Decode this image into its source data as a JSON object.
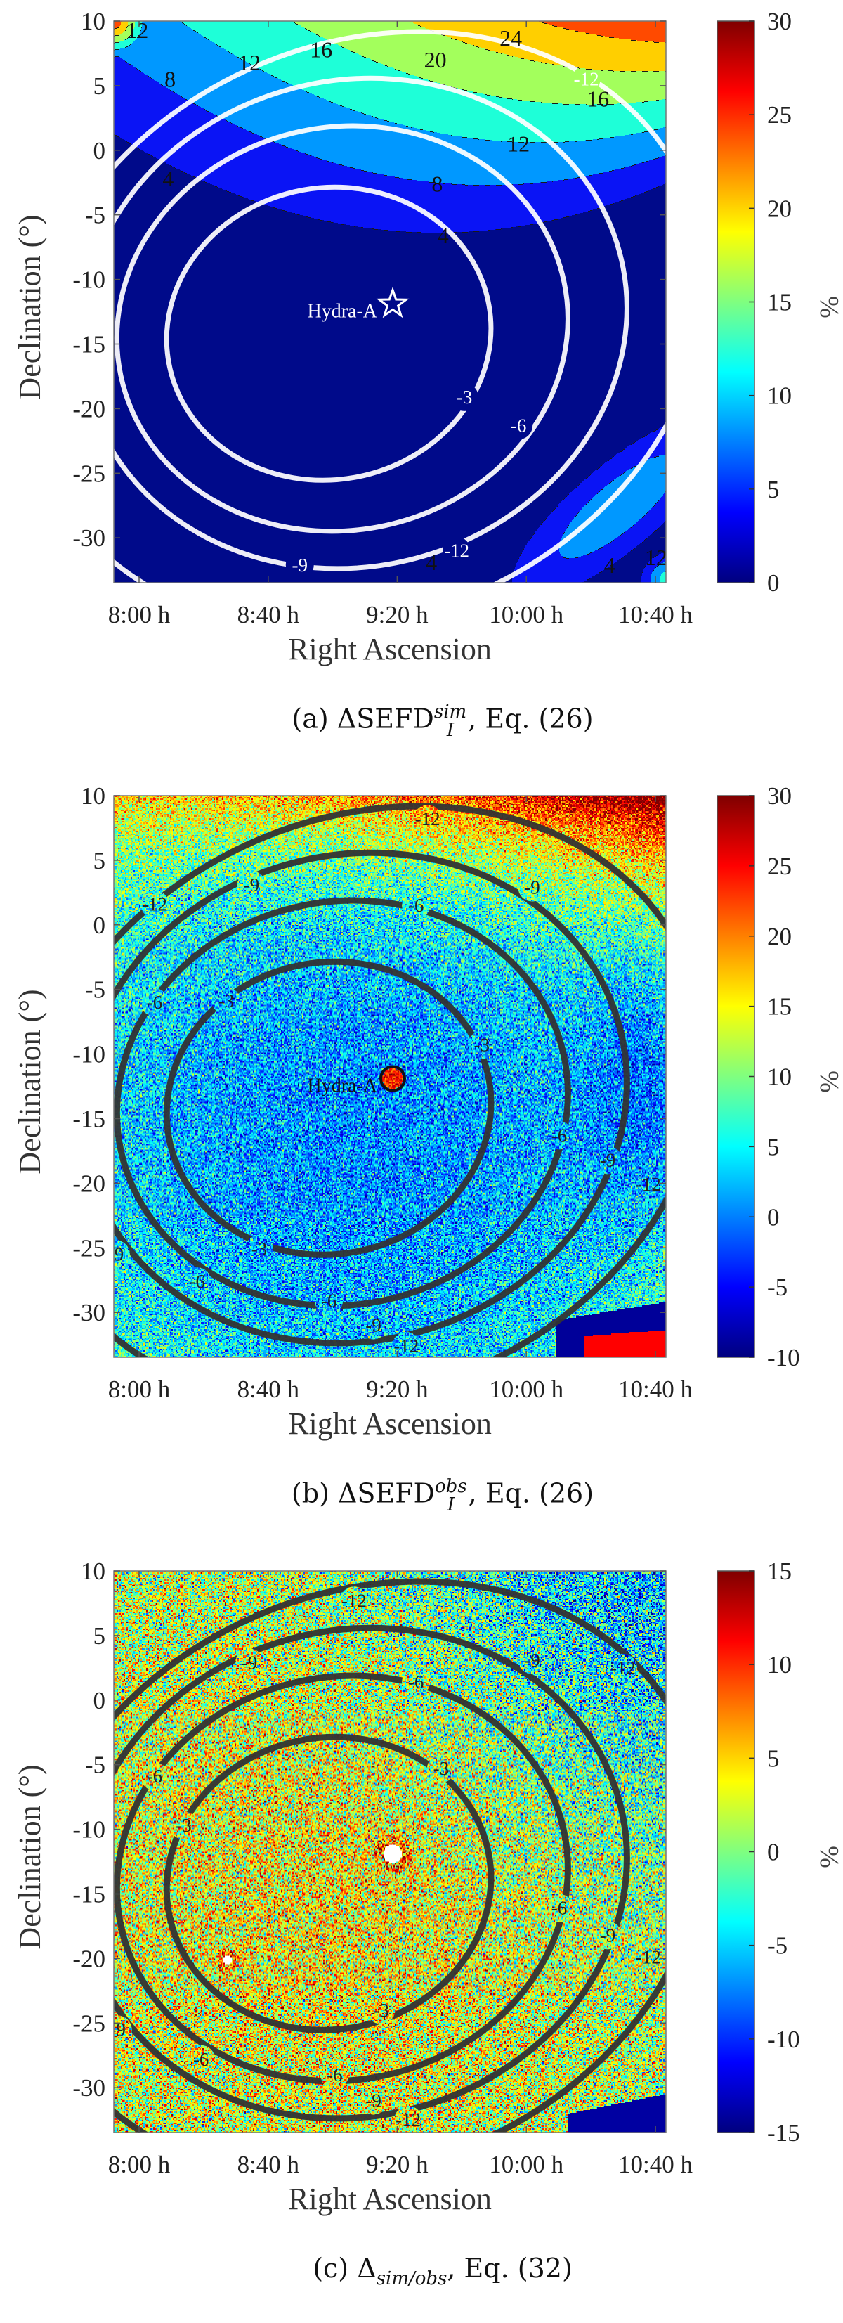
{
  "chart_data": [
    {
      "type": "heatmap",
      "subtype": "filled-contour",
      "caption": {
        "prefix": "(a) ΔSEFD",
        "sup": "sim",
        "sub": "I",
        "suffix": ", Eq. (26)"
      },
      "xlabel": "Right Ascension",
      "ylabel": "Declination (°)",
      "x_ticks": [
        {
          "label": "8:00 h",
          "ra_h": 8
        },
        {
          "label": "8:40 h",
          "ra_h": 8.667
        },
        {
          "label": "9:20 h",
          "ra_h": 9.333
        },
        {
          "label": "10:00 h",
          "ra_h": 10
        },
        {
          "label": "10:40 h",
          "ra_h": 10.667
        }
      ],
      "y_ticks": [
        "10",
        "5",
        "0",
        "-5",
        "-10",
        "-15",
        "-20",
        "-25",
        "-30"
      ],
      "xlim_h": [
        7.87,
        10.72
      ],
      "ylim_deg": [
        -33.5,
        10
      ],
      "colorbar": {
        "label": "%",
        "colormap": "jet",
        "clim": [
          0,
          30
        ],
        "ticks": [
          "30",
          "25",
          "20",
          "15",
          "10",
          "5",
          "0"
        ]
      },
      "filled_levels": [
        0,
        4,
        8,
        12,
        16,
        20,
        24,
        28
      ],
      "band_colors": [
        "#000a8a",
        "#0a14f5",
        "#0098ff",
        "#1effd8",
        "#a3ff5c",
        "#ffcf00",
        "#ff4a00",
        "#b00000"
      ],
      "filled_labels": [
        {
          "text": "12",
          "ra": 7.99,
          "dec": 9.3
        },
        {
          "text": "12",
          "ra": 8.57,
          "dec": 6.8
        },
        {
          "text": "16",
          "ra": 8.94,
          "dec": 7.8
        },
        {
          "text": "20",
          "ra": 9.53,
          "dec": 7.0
        },
        {
          "text": "24",
          "ra": 9.92,
          "dec": 8.7
        },
        {
          "text": "8",
          "ra": 8.16,
          "dec": 5.5
        },
        {
          "text": "16",
          "ra": 10.37,
          "dec": 4.0
        },
        {
          "text": "12",
          "ra": 9.96,
          "dec": 0.5
        },
        {
          "text": "8",
          "ra": 9.54,
          "dec": -2.6
        },
        {
          "text": "4",
          "ra": 9.57,
          "dec": -6.6
        },
        {
          "text": "4",
          "ra": 8.15,
          "dec": -2.2
        },
        {
          "text": "4",
          "ra": 9.51,
          "dec": -31.9
        },
        {
          "text": "4",
          "ra": 10.43,
          "dec": -32.1
        },
        {
          "text": "12",
          "ra": 10.67,
          "dec": -31.5
        }
      ],
      "contour_color": "#ffffff",
      "contours": [
        {
          "level": -3,
          "center_ra": 8.98,
          "center_dec": -14.2,
          "semi_ra_h": 0.84,
          "semi_dec": 11.3,
          "tilt_deg": -10
        },
        {
          "level": -6,
          "center_ra": 9.05,
          "center_dec": -13.8,
          "semi_ra_h": 1.17,
          "semi_dec": 15.6,
          "tilt_deg": -12
        },
        {
          "level": -9,
          "center_ra": 9.11,
          "center_dec": -13.4,
          "semi_ra_h": 1.42,
          "semi_dec": 18.8,
          "tilt_deg": -15
        },
        {
          "level": -12,
          "center_ra": 9.17,
          "center_dec": -13.9,
          "semi_ra_h": 1.81,
          "semi_dec": 22.1,
          "tilt_deg": -25
        }
      ],
      "contour_labels": [
        {
          "text": "-3",
          "ra": 9.68,
          "dec": -19.1
        },
        {
          "text": "-6",
          "ra": 9.96,
          "dec": -21.3
        },
        {
          "text": "-9",
          "ra": 8.83,
          "dec": -32.1
        },
        {
          "text": "-12",
          "ra": 9.64,
          "dec": -31.0
        },
        {
          "text": "-12",
          "ra": 10.31,
          "dec": 5.5
        }
      ],
      "source": {
        "label": "Hydra-A",
        "marker": "star",
        "ra": 9.31,
        "dec": -11.9
      }
    },
    {
      "type": "heatmap",
      "caption": {
        "prefix": "(b) ΔSEFD",
        "sup": "obs",
        "sub": "I",
        "suffix": ", Eq. (26)"
      },
      "xlabel": "Right Ascension",
      "ylabel": "Declination (°)",
      "x_ticks": [
        {
          "label": "8:00 h",
          "ra_h": 8
        },
        {
          "label": "8:40 h",
          "ra_h": 8.667
        },
        {
          "label": "9:20 h",
          "ra_h": 9.333
        },
        {
          "label": "10:00 h",
          "ra_h": 10
        },
        {
          "label": "10:40 h",
          "ra_h": 10.667
        }
      ],
      "y_ticks": [
        "10",
        "5",
        "0",
        "-5",
        "-10",
        "-15",
        "-20",
        "-25",
        "-30"
      ],
      "xlim_h": [
        7.87,
        10.72
      ],
      "ylim_deg": [
        -33.5,
        10
      ],
      "colorbar": {
        "label": "%",
        "colormap": "jet",
        "clim": [
          -10,
          30
        ],
        "ticks": [
          "30",
          "25",
          "20",
          "15",
          "10",
          "5",
          "0",
          "-5",
          "-10"
        ]
      },
      "contour_color": "#333333",
      "contours": [
        {
          "level": -3,
          "center_ra": 8.98,
          "center_dec": -14.2,
          "semi_ra_h": 0.84,
          "semi_dec": 11.3,
          "tilt_deg": -10
        },
        {
          "level": -6,
          "center_ra": 9.05,
          "center_dec": -13.8,
          "semi_ra_h": 1.17,
          "semi_dec": 15.6,
          "tilt_deg": -12
        },
        {
          "level": -9,
          "center_ra": 9.11,
          "center_dec": -13.4,
          "semi_ra_h": 1.42,
          "semi_dec": 18.8,
          "tilt_deg": -15
        },
        {
          "level": -12,
          "center_ra": 9.17,
          "center_dec": -13.9,
          "semi_ra_h": 1.81,
          "semi_dec": 22.1,
          "tilt_deg": -25
        }
      ],
      "contour_labels": [
        {
          "text": "-12",
          "ra": 9.49,
          "dec": 8.2
        },
        {
          "text": "-9",
          "ra": 8.58,
          "dec": 3.1
        },
        {
          "text": "-9",
          "ra": 10.03,
          "dec": 2.9
        },
        {
          "text": "-12",
          "ra": 8.08,
          "dec": 1.6
        },
        {
          "text": "-6",
          "ra": 9.43,
          "dec": 1.5
        },
        {
          "text": "-6",
          "ra": 8.08,
          "dec": -6.0
        },
        {
          "text": "-3",
          "ra": 8.45,
          "dec": -5.9
        },
        {
          "text": "-3",
          "ra": 9.77,
          "dec": -9.3
        },
        {
          "text": "-6",
          "ra": 10.17,
          "dec": -16.3
        },
        {
          "text": "-9",
          "ra": 10.42,
          "dec": -18.2
        },
        {
          "text": "-12",
          "ra": 10.63,
          "dec": -20.1
        },
        {
          "text": "-9",
          "ra": 7.88,
          "dec": -25.5
        },
        {
          "text": "-3",
          "ra": 8.62,
          "dec": -25.1
        },
        {
          "text": "-6",
          "ra": 8.3,
          "dec": -27.6
        },
        {
          "text": "-6",
          "ra": 8.98,
          "dec": -29.1
        },
        {
          "text": "-9",
          "ra": 9.21,
          "dec": -31.0
        },
        {
          "text": "-12",
          "ra": 9.38,
          "dec": -32.6
        }
      ],
      "source": {
        "label": "Hydra-A",
        "marker": "circle",
        "ra": 9.31,
        "dec": -11.9
      }
    },
    {
      "type": "heatmap",
      "caption": {
        "prefix": "(c) Δ",
        "sub": "sim/obs",
        "suffix": ", Eq. (32)"
      },
      "xlabel": "Right Ascension",
      "ylabel": "Declination (°)",
      "x_ticks": [
        {
          "label": "8:00 h",
          "ra_h": 8
        },
        {
          "label": "8:40 h",
          "ra_h": 8.667
        },
        {
          "label": "9:20 h",
          "ra_h": 9.333
        },
        {
          "label": "10:00 h",
          "ra_h": 10
        },
        {
          "label": "10:40 h",
          "ra_h": 10.667
        }
      ],
      "y_ticks": [
        "10",
        "5",
        "0",
        "-5",
        "-10",
        "-15",
        "-20",
        "-25",
        "-30"
      ],
      "xlim_h": [
        7.87,
        10.72
      ],
      "ylim_deg": [
        -33.5,
        10
      ],
      "colorbar": {
        "label": "%",
        "colormap": "jet",
        "clim": [
          -15,
          15
        ],
        "ticks": [
          "15",
          "10",
          "5",
          "0",
          "-5",
          "-10",
          "-15"
        ]
      },
      "contour_color": "#333333",
      "contours": [
        {
          "level": -3,
          "center_ra": 8.98,
          "center_dec": -14.2,
          "semi_ra_h": 0.84,
          "semi_dec": 11.3,
          "tilt_deg": -10
        },
        {
          "level": -6,
          "center_ra": 9.05,
          "center_dec": -13.8,
          "semi_ra_h": 1.17,
          "semi_dec": 15.6,
          "tilt_deg": -12
        },
        {
          "level": -9,
          "center_ra": 9.11,
          "center_dec": -13.4,
          "semi_ra_h": 1.42,
          "semi_dec": 18.8,
          "tilt_deg": -15
        },
        {
          "level": -12,
          "center_ra": 9.17,
          "center_dec": -13.9,
          "semi_ra_h": 1.81,
          "semi_dec": 22.1,
          "tilt_deg": -25
        }
      ],
      "contour_labels": [
        {
          "text": "-12",
          "ra": 9.11,
          "dec": 7.7
        },
        {
          "text": "-12",
          "ra": 10.5,
          "dec": 2.5
        },
        {
          "text": "-9",
          "ra": 10.03,
          "dec": 3.1
        },
        {
          "text": "-9",
          "ra": 8.57,
          "dec": 2.9
        },
        {
          "text": "-6",
          "ra": 9.43,
          "dec": 1.4
        },
        {
          "text": "-3",
          "ra": 9.56,
          "dec": -5.3
        },
        {
          "text": "-6",
          "ra": 8.08,
          "dec": -5.9
        },
        {
          "text": "-3",
          "ra": 8.23,
          "dec": -9.7
        },
        {
          "text": "-6",
          "ra": 10.17,
          "dec": -16.1
        },
        {
          "text": "-9",
          "ra": 10.42,
          "dec": -18.2
        },
        {
          "text": "-12",
          "ra": 10.63,
          "dec": -19.9
        },
        {
          "text": "-3",
          "ra": 9.25,
          "dec": -24.0
        },
        {
          "text": "-9",
          "ra": 7.89,
          "dec": -25.5
        },
        {
          "text": "-6",
          "ra": 8.32,
          "dec": -27.8
        },
        {
          "text": "-6",
          "ra": 9.01,
          "dec": -29.0
        },
        {
          "text": "-9",
          "ra": 9.21,
          "dec": -31.0
        },
        {
          "text": "-12",
          "ra": 9.39,
          "dec": -32.5
        }
      ]
    }
  ]
}
